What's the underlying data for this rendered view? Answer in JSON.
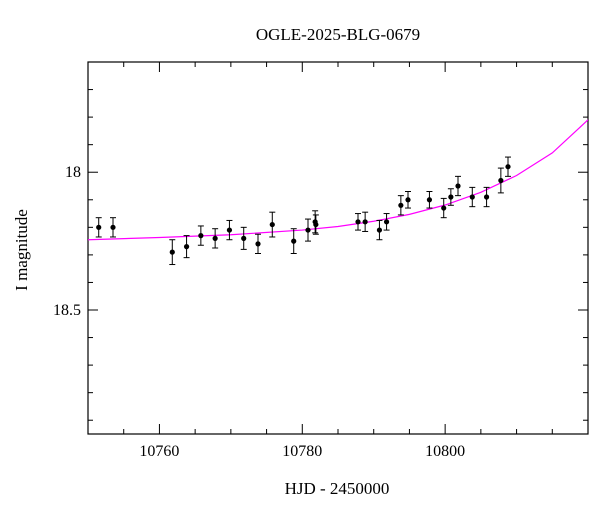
{
  "chart_data": {
    "type": "scatter",
    "title": "OGLE-2025-BLG-0679",
    "xlabel": "HJD - 2450000",
    "ylabel": "I magnitude",
    "xlim": [
      10750,
      10820
    ],
    "ylim": [
      18.95,
      17.6
    ],
    "y_inverted": true,
    "x_ticks": [
      10760,
      10780,
      10800
    ],
    "x_tick_labels": [
      "10760",
      "10780",
      "10800"
    ],
    "y_ticks": [
      18,
      18.5
    ],
    "y_tick_labels": [
      "18",
      "18.5"
    ],
    "colors": {
      "points": "#000000",
      "model": "#ff00ff",
      "axes": "#000000"
    },
    "series": [
      {
        "type": "errorbar",
        "x": [
          10751.5,
          10753.5,
          10761.8,
          10763.8,
          10765.8,
          10767.8,
          10769.8,
          10771.8,
          10773.8,
          10775.8,
          10778.8,
          10780.8,
          10781.8,
          10781.9,
          10787.8,
          10788.8,
          10790.8,
          10791.8,
          10793.8,
          10794.8,
          10797.8,
          10799.8,
          10800.8,
          10801.8,
          10803.8,
          10805.8,
          10807.8,
          10808.8
        ],
        "y": [
          18.2,
          18.2,
          18.29,
          18.27,
          18.23,
          18.24,
          18.21,
          18.24,
          18.26,
          18.19,
          18.25,
          18.21,
          18.18,
          18.19,
          18.18,
          18.18,
          18.21,
          18.18,
          18.12,
          18.1,
          18.1,
          18.13,
          18.09,
          18.05,
          18.09,
          18.09,
          18.03,
          17.98
        ],
        "err": [
          0.035,
          0.035,
          0.045,
          0.04,
          0.035,
          0.035,
          0.035,
          0.04,
          0.035,
          0.045,
          0.045,
          0.04,
          0.04,
          0.035,
          0.03,
          0.035,
          0.035,
          0.03,
          0.035,
          0.03,
          0.03,
          0.035,
          0.03,
          0.035,
          0.035,
          0.035,
          0.045,
          0.035
        ]
      },
      {
        "type": "line",
        "x": [
          10750,
          10760,
          10770,
          10780,
          10785,
          10790,
          10795,
          10800,
          10805,
          10810,
          10815,
          10820
        ],
        "y": [
          18.245,
          18.237,
          18.227,
          18.21,
          18.197,
          18.178,
          18.153,
          18.119,
          18.073,
          18.012,
          17.93,
          17.81
        ]
      }
    ]
  }
}
